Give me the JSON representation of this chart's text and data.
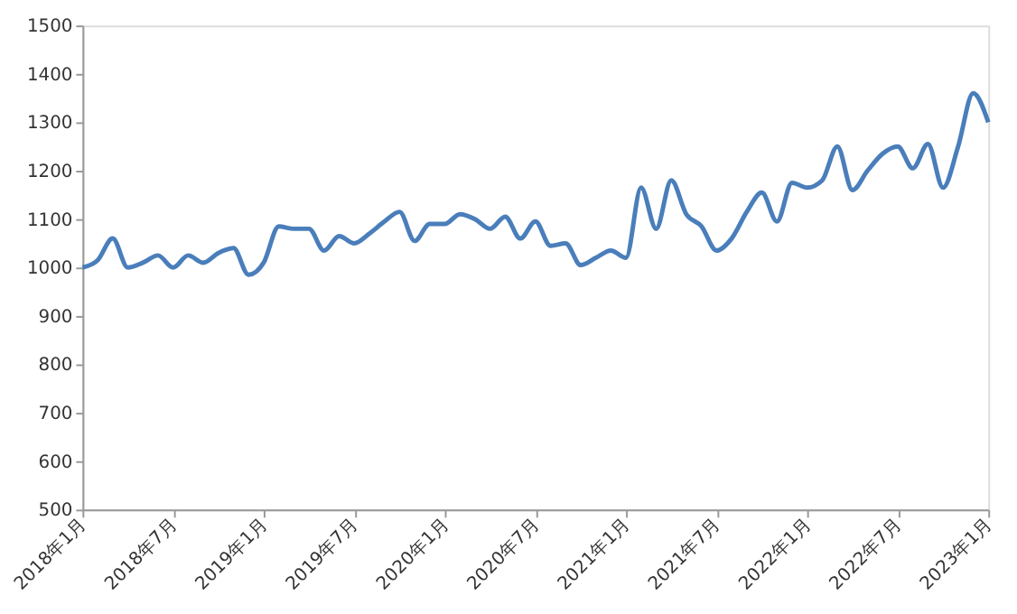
{
  "chart_data": {
    "type": "line",
    "categories": [
      "2018年1月",
      null,
      null,
      null,
      null,
      null,
      "2018年7月",
      null,
      null,
      null,
      null,
      null,
      "2019年1月",
      null,
      null,
      null,
      null,
      null,
      "2019年7月",
      null,
      null,
      null,
      null,
      null,
      "2020年1月",
      null,
      null,
      null,
      null,
      null,
      "2020年7月",
      null,
      null,
      null,
      null,
      null,
      "2021年1月",
      null,
      null,
      null,
      null,
      null,
      "2021年7月",
      null,
      null,
      null,
      null,
      null,
      "2022年1月",
      null,
      null,
      null,
      null,
      null,
      "2022年7月",
      null,
      null,
      null,
      null,
      null,
      "2023年1月"
    ],
    "series": [
      {
        "color": "#4a7ebb",
        "values": [
          1000,
          1015,
          1060,
          1000,
          1010,
          1025,
          1000,
          1025,
          1010,
          1030,
          1040,
          985,
          1010,
          1085,
          1080,
          1080,
          1035,
          1065,
          1050,
          1070,
          1095,
          1115,
          1055,
          1090,
          1090,
          1110,
          1100,
          1080,
          1105,
          1060,
          1095,
          1045,
          1050,
          1005,
          1020,
          1035,
          1020,
          1165,
          1080,
          1180,
          1110,
          1085,
          1035,
          1060,
          1115,
          1155,
          1095,
          1175,
          1165,
          1180,
          1250,
          1160,
          1200,
          1235,
          1250,
          1205,
          1255,
          1165,
          1250,
          1360,
          1300
        ]
      }
    ],
    "ylim": [
      500,
      1500
    ],
    "yticks": [
      500,
      600,
      700,
      800,
      900,
      1000,
      1100,
      1200,
      1300,
      1400,
      1500
    ],
    "grid": false,
    "marker": "none",
    "line_style": "solid"
  }
}
